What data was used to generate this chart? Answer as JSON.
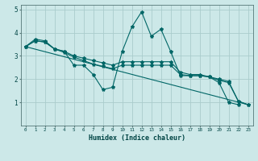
{
  "title": "",
  "xlabel": "Humidex (Indice chaleur)",
  "ylabel": "",
  "background_color": "#cce8e8",
  "grid_color": "#aacccc",
  "line_color": "#006666",
  "xlim": [
    -0.5,
    23.5
  ],
  "ylim": [
    0,
    5.2
  ],
  "yticks": [
    1,
    2,
    3,
    4,
    5
  ],
  "xticks": [
    0,
    1,
    2,
    3,
    4,
    5,
    6,
    7,
    8,
    9,
    10,
    11,
    12,
    13,
    14,
    15,
    16,
    17,
    18,
    19,
    20,
    21,
    22,
    23
  ],
  "lines": [
    {
      "x": [
        0,
        1,
        2,
        3,
        4,
        5,
        6,
        7,
        8,
        9,
        10,
        11,
        12,
        13,
        14,
        15,
        16,
        17,
        18,
        19,
        20,
        21,
        22
      ],
      "y": [
        3.4,
        3.72,
        3.65,
        3.3,
        3.2,
        2.6,
        2.6,
        2.2,
        1.55,
        1.65,
        3.2,
        4.25,
        4.9,
        3.85,
        4.15,
        3.2,
        2.15,
        2.15,
        2.15,
        2.1,
        1.85,
        1.0,
        0.9
      ]
    },
    {
      "x": [
        0,
        1,
        2,
        3,
        4,
        5,
        6,
        7,
        8,
        9,
        10,
        11,
        12,
        13,
        14,
        15,
        16,
        17,
        18,
        19,
        20,
        21,
        22,
        23
      ],
      "y": [
        3.4,
        3.65,
        3.6,
        3.3,
        3.2,
        3.0,
        2.9,
        2.8,
        2.7,
        2.6,
        2.75,
        2.75,
        2.75,
        2.75,
        2.75,
        2.75,
        2.3,
        2.2,
        2.2,
        2.1,
        2.0,
        1.9,
        1.05,
        0.9
      ]
    },
    {
      "x": [
        0,
        1,
        2,
        3,
        4,
        5,
        6,
        7,
        8,
        9,
        10,
        11,
        12,
        13,
        14,
        15,
        16,
        17,
        18,
        19,
        20,
        21,
        22,
        23
      ],
      "y": [
        3.4,
        3.65,
        3.6,
        3.3,
        3.15,
        2.95,
        2.8,
        2.65,
        2.55,
        2.45,
        2.6,
        2.6,
        2.6,
        2.6,
        2.6,
        2.6,
        2.2,
        2.15,
        2.15,
        2.1,
        1.95,
        1.85,
        1.05,
        0.9
      ]
    },
    {
      "x": [
        0,
        23
      ],
      "y": [
        3.4,
        0.9
      ]
    }
  ]
}
